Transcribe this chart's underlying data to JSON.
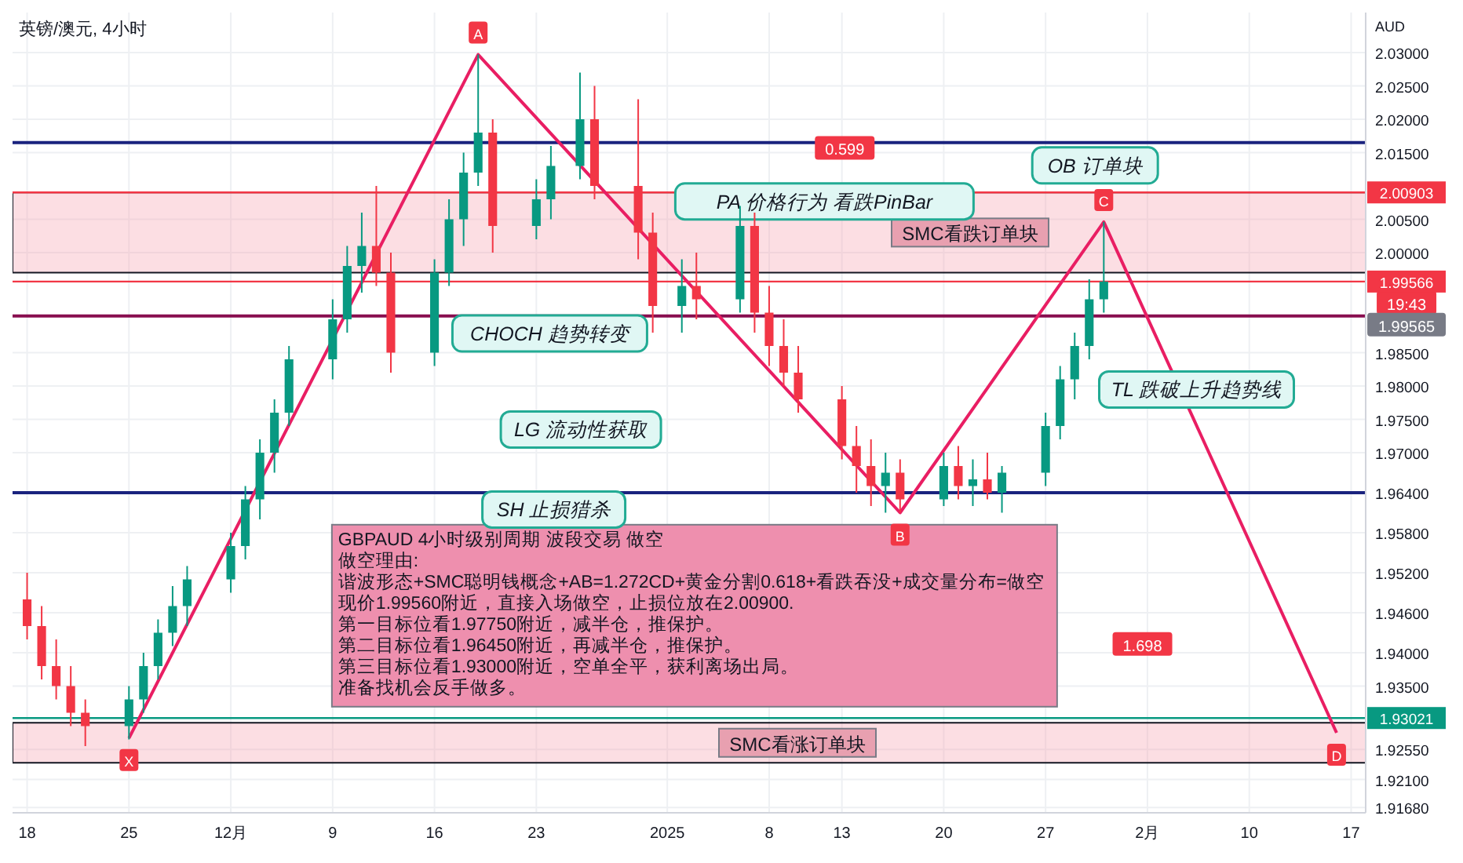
{
  "chart_data": {
    "type": "candlestick",
    "title": "英镑/澳元, 4小时",
    "ylabel": "AUD",
    "x": [
      "2024-11-18",
      "2024-11-19",
      "2024-11-20",
      "2024-11-21",
      "2024-11-22",
      "2024-11-25",
      "2024-11-26",
      "2024-11-27",
      "2024-11-28",
      "2024-11-29",
      "2024-12-02",
      "2024-12-03",
      "2024-12-04",
      "2024-12-05",
      "2024-12-06",
      "2024-12-09",
      "2024-12-10",
      "2024-12-11",
      "2024-12-12",
      "2024-12-13",
      "2024-12-16",
      "2024-12-17",
      "2024-12-18",
      "2024-12-19",
      "2024-12-20",
      "2024-12-23",
      "2024-12-24",
      "2024-12-26",
      "2024-12-27",
      "2024-12-30",
      "2024-12-31",
      "2025-01-02",
      "2025-01-03",
      "2025-01-06",
      "2025-01-07",
      "2025-01-08",
      "2025-01-09",
      "2025-01-10",
      "2025-01-13",
      "2025-01-14",
      "2025-01-15",
      "2025-01-16",
      "2025-01-17",
      "2025-01-20",
      "2025-01-21",
      "2025-01-22",
      "2025-01-23",
      "2025-01-24",
      "2025-01-27",
      "2025-01-28",
      "2025-01-29",
      "2025-01-30",
      "2025-01-31"
    ],
    "ohlc": [
      [
        1.948,
        1.952,
        1.942,
        1.944
      ],
      [
        1.944,
        1.947,
        1.936,
        1.938
      ],
      [
        1.938,
        1.942,
        1.933,
        1.935
      ],
      [
        1.935,
        1.938,
        1.929,
        1.931
      ],
      [
        1.931,
        1.933,
        1.926,
        1.929
      ],
      [
        1.929,
        1.935,
        1.927,
        1.933
      ],
      [
        1.933,
        1.94,
        1.931,
        1.938
      ],
      [
        1.938,
        1.945,
        1.936,
        1.943
      ],
      [
        1.943,
        1.95,
        1.941,
        1.947
      ],
      [
        1.947,
        1.953,
        1.944,
        1.951
      ],
      [
        1.951,
        1.958,
        1.949,
        1.956
      ],
      [
        1.956,
        1.965,
        1.954,
        1.963
      ],
      [
        1.963,
        1.972,
        1.96,
        1.97
      ],
      [
        1.97,
        1.978,
        1.967,
        1.976
      ],
      [
        1.976,
        1.986,
        1.974,
        1.984
      ],
      [
        1.984,
        1.993,
        1.981,
        1.99
      ],
      [
        1.99,
        2.001,
        1.988,
        1.998
      ],
      [
        1.998,
        2.006,
        1.994,
        2.001
      ],
      [
        2.001,
        2.01,
        1.995,
        1.997
      ],
      [
        1.997,
        2.0,
        1.982,
        1.985
      ],
      [
        1.985,
        1.999,
        1.983,
        1.997
      ],
      [
        1.997,
        2.008,
        1.995,
        2.005
      ],
      [
        2.005,
        2.015,
        2.001,
        2.012
      ],
      [
        2.012,
        2.0297,
        2.01,
        2.018
      ],
      [
        2.018,
        2.02,
        2.0,
        2.004
      ],
      [
        2.004,
        2.011,
        2.002,
        2.008
      ],
      [
        2.008,
        2.016,
        2.005,
        2.013
      ],
      [
        2.013,
        2.027,
        2.011,
        2.02
      ],
      [
        2.02,
        2.025,
        2.008,
        2.01
      ],
      [
        2.01,
        2.023,
        1.999,
        2.003
      ],
      [
        2.003,
        2.006,
        1.988,
        1.992
      ],
      [
        1.992,
        1.999,
        1.988,
        1.995
      ],
      [
        1.995,
        2.0,
        1.99,
        1.993
      ],
      [
        1.993,
        2.007,
        1.991,
        2.004
      ],
      [
        2.004,
        2.006,
        1.988,
        1.991
      ],
      [
        1.991,
        1.995,
        1.983,
        1.986
      ],
      [
        1.986,
        1.99,
        1.98,
        1.982
      ],
      [
        1.982,
        1.986,
        1.976,
        1.978
      ],
      [
        1.978,
        1.98,
        1.969,
        1.971
      ],
      [
        1.971,
        1.974,
        1.964,
        1.968
      ],
      [
        1.968,
        1.972,
        1.962,
        1.965
      ],
      [
        1.965,
        1.97,
        1.961,
        1.967
      ],
      [
        1.967,
        1.969,
        1.961,
        1.963
      ],
      [
        1.963,
        1.97,
        1.962,
        1.968
      ],
      [
        1.968,
        1.971,
        1.963,
        1.965
      ],
      [
        1.965,
        1.969,
        1.962,
        1.966
      ],
      [
        1.966,
        1.97,
        1.963,
        1.964
      ],
      [
        1.964,
        1.968,
        1.961,
        1.967
      ],
      [
        1.967,
        1.976,
        1.965,
        1.974
      ],
      [
        1.974,
        1.983,
        1.972,
        1.981
      ],
      [
        1.981,
        1.988,
        1.978,
        1.986
      ],
      [
        1.986,
        1.996,
        1.984,
        1.993
      ],
      [
        1.993,
        2.0046,
        1.991,
        1.99566
      ]
    ],
    "series": [
      {
        "type": "line",
        "color": "#e91e63",
        "x": [
          "2024-11-25",
          "2024-12-19",
          "2025-01-17",
          "2025-01-31",
          "2025-02-16"
        ],
        "values": [
          1.9272,
          2.0297,
          1.961,
          2.0046,
          1.928
        ]
      }
    ],
    "xlim": [
      "2024-11-17",
      "2025-02-18"
    ],
    "xticks": [
      {
        "value": "2024-11-18",
        "label": "18"
      },
      {
        "value": "2024-11-25",
        "label": "25"
      },
      {
        "value": "2024-12-02",
        "label": "12月"
      },
      {
        "value": "2024-12-09",
        "label": "9"
      },
      {
        "value": "2024-12-16",
        "label": "16"
      },
      {
        "value": "2024-12-23",
        "label": "23"
      },
      {
        "value": "2025-01-01",
        "label": "2025"
      },
      {
        "value": "2025-01-08",
        "label": "8"
      },
      {
        "value": "2025-01-13",
        "label": "13"
      },
      {
        "value": "2025-01-20",
        "label": "20"
      },
      {
        "value": "2025-01-27",
        "label": "27"
      },
      {
        "value": "2025-02-03",
        "label": "2月"
      },
      {
        "value": "2025-02-10",
        "label": "10"
      },
      {
        "value": "2025-02-17",
        "label": "17"
      }
    ],
    "ylim": [
      1.916,
      2.036
    ],
    "yticks": [
      {
        "value": 2.03,
        "label": "2.03000"
      },
      {
        "value": 2.025,
        "label": "2.02500"
      },
      {
        "value": 2.02,
        "label": "2.02000"
      },
      {
        "value": 2.015,
        "label": "2.01500"
      },
      {
        "value": 2.005,
        "label": "2.00500"
      },
      {
        "value": 2.0,
        "label": "2.00000"
      },
      {
        "value": 1.985,
        "label": "1.98500"
      },
      {
        "value": 1.98,
        "label": "1.98000"
      },
      {
        "value": 1.975,
        "label": "1.97500"
      },
      {
        "value": 1.97,
        "label": "1.97000"
      },
      {
        "value": 1.964,
        "label": "1.96400"
      },
      {
        "value": 1.958,
        "label": "1.95800"
      },
      {
        "value": 1.952,
        "label": "1.95200"
      },
      {
        "value": 1.946,
        "label": "1.94600"
      },
      {
        "value": 1.94,
        "label": "1.94000"
      },
      {
        "value": 1.935,
        "label": "1.93500"
      },
      {
        "value": 1.9255,
        "label": "1.92550"
      },
      {
        "value": 1.921,
        "label": "1.92100"
      },
      {
        "value": 1.9168,
        "label": "1.91680"
      }
    ],
    "grid": true,
    "ref_lines": [
      {
        "axis": "y",
        "value": 2.0165,
        "color": "#1a237e"
      },
      {
        "axis": "y",
        "value": 1.9905,
        "color": "#880e4f"
      },
      {
        "axis": "y",
        "value": 1.964,
        "color": "#1a237e"
      },
      {
        "axis": "y",
        "value": 2.00903,
        "label": "2.00903",
        "color": "#f23645"
      },
      {
        "axis": "y",
        "value": 1.99566,
        "label": "1.99566",
        "color": "#f23645"
      },
      {
        "axis": "y",
        "value": 1.93021,
        "label": "1.93021",
        "color": "#089981"
      }
    ],
    "bands": [
      {
        "axis": "y",
        "from": 1.997,
        "to": 2.00903,
        "label": "SMC看跌订单块",
        "color": "#f7a1b0"
      },
      {
        "axis": "y",
        "from": 1.9235,
        "to": 1.9295,
        "label": "SMC看涨订单块",
        "color": "#f7a1b0"
      }
    ],
    "annotations": [
      {
        "text": "X",
        "x": "2024-11-25",
        "y": 1.9272
      },
      {
        "text": "A",
        "x": "2024-12-19",
        "y": 2.0297
      },
      {
        "text": "B",
        "x": "2025-01-17",
        "y": 1.961
      },
      {
        "text": "C",
        "x": "2025-01-31",
        "y": 2.0046
      },
      {
        "text": "D",
        "x": "2025-02-16",
        "y": 1.928
      },
      "0.599",
      "1.698",
      "CHOCH 趋势转变",
      "SH 止损猎杀",
      "LG 流动性获取",
      "PA 价格行为 看跌PinBar",
      "OB 订单块",
      "TL 跌破上升趋势线",
      "GBPAUD 4小时级别周期 波段交易 做空",
      "做空理由:",
      "谐波形态+SMC聪明钱概念+AB=1.272CD+黄金分割0.618+看跌吞没+成交量分布=做空",
      "现价1.99560附近，直接入场做空，止损位放在2.00900.",
      "第一目标位看1.97750附近，减半仓，推保护。",
      "第二目标位看1.96450附近，再减半仓，推保护。",
      "第三目标位看1.93000附近，空单全平，获利离场出局。",
      "准备找机会反手做多。",
      "19:43",
      "1.99565"
    ]
  }
}
